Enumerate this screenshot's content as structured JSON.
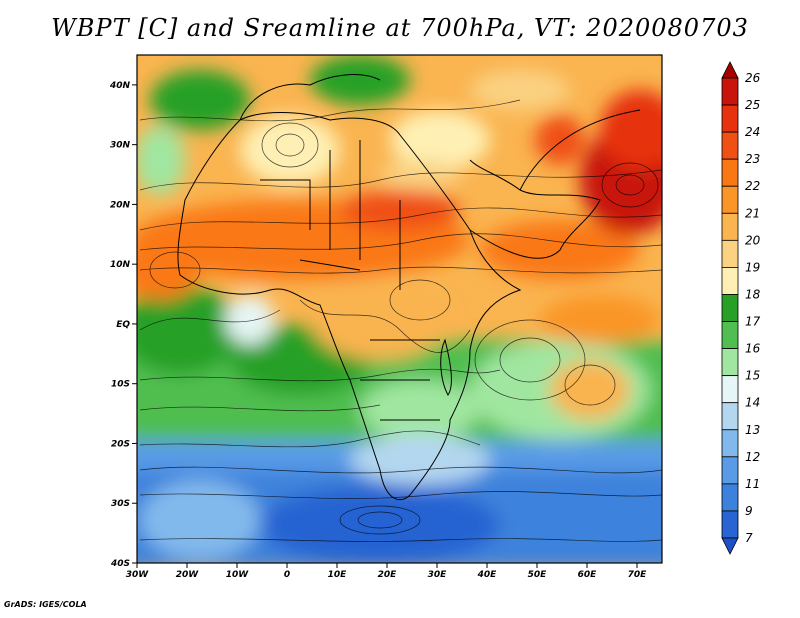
{
  "title": "WBPT [C] and Sreamline at 700hPa, VT: 2020080703",
  "credit": "GrADS: IGES/COLA",
  "map": {
    "lon_range": [
      -30,
      75
    ],
    "lat_range": [
      -40,
      45
    ],
    "lon_ticks": [
      {
        "value": -30,
        "label": "30W"
      },
      {
        "value": -20,
        "label": "20W"
      },
      {
        "value": -10,
        "label": "10W"
      },
      {
        "value": 0,
        "label": "0"
      },
      {
        "value": 10,
        "label": "10E"
      },
      {
        "value": 20,
        "label": "20E"
      },
      {
        "value": 30,
        "label": "30E"
      },
      {
        "value": 40,
        "label": "40E"
      },
      {
        "value": 50,
        "label": "50E"
      },
      {
        "value": 60,
        "label": "60E"
      },
      {
        "value": 70,
        "label": "70E"
      }
    ],
    "lat_ticks": [
      {
        "value": 40,
        "label": "40N"
      },
      {
        "value": 30,
        "label": "30N"
      },
      {
        "value": 20,
        "label": "20N"
      },
      {
        "value": 10,
        "label": "10N"
      },
      {
        "value": 0,
        "label": "EQ"
      },
      {
        "value": -10,
        "label": "10S"
      },
      {
        "value": -20,
        "label": "20S"
      },
      {
        "value": -30,
        "label": "30S"
      },
      {
        "value": -40,
        "label": "40S"
      }
    ]
  },
  "colorbar": {
    "labels": [
      "26",
      "25",
      "24",
      "23",
      "22",
      "21",
      "20",
      "19",
      "18",
      "17",
      "16",
      "15",
      "14",
      "13",
      "12",
      "11",
      "9",
      "7"
    ],
    "colors": [
      "#a50000",
      "#c8140a",
      "#e6320f",
      "#f05014",
      "#fa7814",
      "#fa9628",
      "#fab450",
      "#fad282",
      "#fef0b4",
      "#28a028",
      "#50be50",
      "#a0e6a0",
      "#e6f5f5",
      "#b4d7f0",
      "#82b9ec",
      "#5a9be6",
      "#3c82dc",
      "#2864d2",
      "#1e50c8"
    ]
  }
}
